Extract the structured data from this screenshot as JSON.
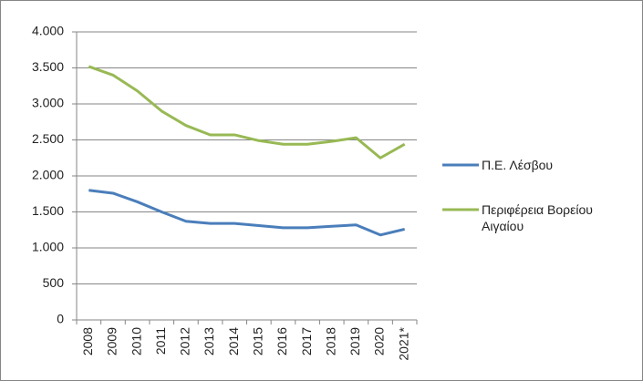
{
  "chart_data": {
    "type": "line",
    "categories": [
      "2008",
      "2009",
      "2010",
      "2011",
      "2012",
      "2013",
      "2014",
      "2015",
      "2016",
      "2017",
      "2018",
      "2019",
      "2020",
      "2021*"
    ],
    "series": [
      {
        "name": "Π.Ε. Λέσβου",
        "color": "#4a7ebb",
        "values": [
          1800,
          1760,
          1640,
          1500,
          1370,
          1340,
          1340,
          1310,
          1280,
          1280,
          1300,
          1320,
          1180,
          1260
        ]
      },
      {
        "name": "Περιφέρεια Βορείου Αιγαίου",
        "color": "#98b954",
        "values": [
          3520,
          3400,
          3180,
          2900,
          2700,
          2570,
          2570,
          2490,
          2440,
          2440,
          2480,
          2530,
          2250,
          2440
        ]
      }
    ],
    "ylim": [
      0,
      4000
    ],
    "yticks": [
      0,
      500,
      {
        "value": 1000,
        "label": "1.000"
      },
      {
        "value": 1500,
        "label": "1.500"
      },
      {
        "value": 2000,
        "label": "2.000"
      },
      {
        "value": 2500,
        "label": "2.500"
      },
      {
        "value": 3000,
        "label": "3.000"
      },
      {
        "value": 3500,
        "label": "3.500"
      },
      {
        "value": 4000,
        "label": "4.000"
      }
    ],
    "grid": true,
    "legend": "right"
  }
}
